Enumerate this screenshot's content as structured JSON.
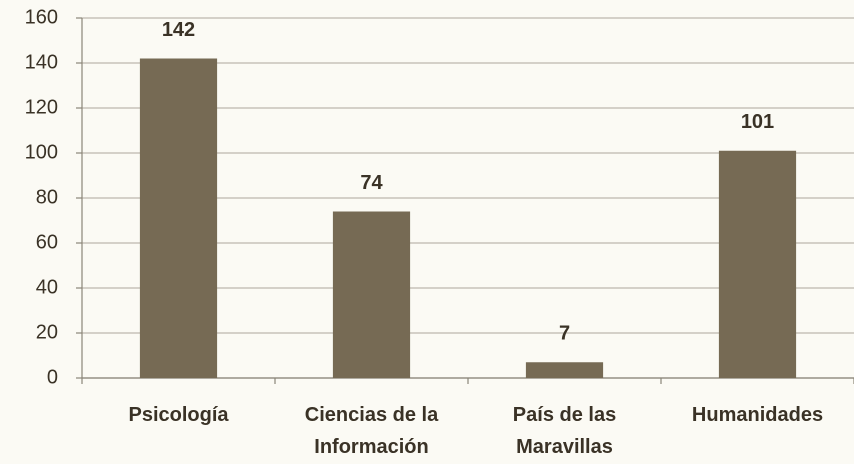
{
  "chart_data": {
    "type": "bar",
    "categories": [
      "Psicología",
      "Ciencias de la Información",
      "País de las Maravillas",
      "Humanidades"
    ],
    "values": [
      142,
      74,
      7,
      101
    ],
    "color": "#766a54",
    "ylim": [
      0,
      160
    ],
    "yticks": [
      0,
      20,
      40,
      60,
      80,
      100,
      120,
      140,
      160
    ],
    "grid": true
  }
}
